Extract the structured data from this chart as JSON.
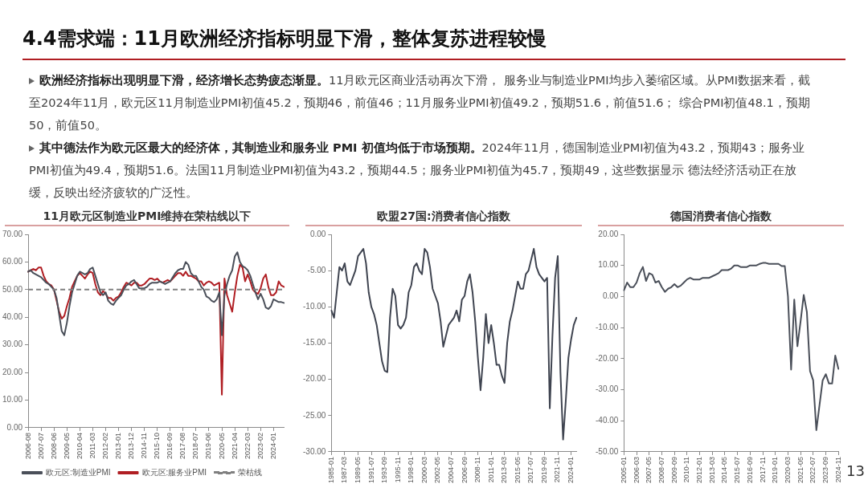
{
  "chart_data": [
    {
      "type": "other",
      "title": "4.4需求端：11月欧洲经济指标明显下滑，整体复苏进程较慢",
      "annotations": [
        "欧洲经济指标出现明显下滑，经济增长态势疲态渐显。",
        "11月欧元区商业活动再次下滑， 服务业与制造业PMI均步入萎缩区域。从PMI数据来看，截至2024年11月，欧元区11月制造业PMI初值45.2，预期46，前值46；11月服务业PMI初值49.2，预期51.6，前值51.6； 综合PMI初值48.1，预期50，前值50。",
        "其中德法作为欧元区最大的经济体，其制造业和服务业 PMI 初值均低于市场预期。",
        "2024年11月，德国制造业PMI初值为43.2，预期43；服务业PMI初值为49.4，预期51.6。法国11月制造业PMI初值为43.2，预期44.5；服务业PMI初值为45.7，预期49，这些数据显示 德法经济活动正在放缓，反映出经济疲软的广泛性。",
        "13"
      ]
    },
    {
      "type": "line",
      "title": "11月欧元区制造业PMI维持在荣枯线以下",
      "legend": "bottom",
      "categories": [
        "2006-08",
        null,
        null,
        null,
        null,
        "2007-07",
        null,
        null,
        null,
        null,
        "2008-06",
        null,
        null,
        null,
        null,
        "2009-05",
        null,
        null,
        null,
        null,
        "2010-04",
        null,
        null,
        null,
        null,
        "2011-03",
        null,
        null,
        null,
        null,
        "2012-02",
        null,
        null,
        null,
        null,
        "2013-01",
        null,
        null,
        null,
        null,
        "2013-12",
        null,
        null,
        null,
        null,
        "2014-11",
        null,
        null,
        null,
        null,
        "2015-10",
        null,
        null,
        null,
        null,
        "2016-09",
        null,
        null,
        null,
        null,
        "2017-08",
        null,
        null,
        null,
        null,
        "2018-07",
        null,
        null,
        null,
        null,
        "2019-06",
        null,
        null,
        null,
        null,
        "2020-05",
        null,
        null,
        null,
        null,
        "2021-04",
        null,
        null,
        null,
        null,
        "2022-03",
        null,
        null,
        null,
        null,
        "2023-02",
        null,
        null,
        null,
        null,
        "2024-01",
        null,
        null,
        null,
        null
      ],
      "series": [
        {
          "name": "欧元区:制造业PMI",
          "color": "#4a4f59",
          "values": [
            56.5,
            57,
            56,
            55.5,
            55,
            54.5,
            53.5,
            52.5,
            52,
            51,
            50,
            47,
            41,
            35,
            33.5,
            38,
            44,
            49,
            52,
            55,
            56.5,
            56,
            55.5,
            56,
            57.5,
            58,
            55,
            52,
            49,
            48,
            49,
            46,
            45,
            44.5,
            46,
            47,
            48,
            50,
            51.5,
            52,
            53,
            53.5,
            52,
            50.5,
            50.5,
            50.5,
            51,
            52,
            52.5,
            52.5,
            52.5,
            53,
            52.5,
            52,
            52.5,
            53,
            54.5,
            56,
            57,
            57.5,
            57.5,
            60,
            59,
            56,
            55,
            55,
            53,
            51,
            50,
            47.5,
            47,
            46,
            45.5,
            46.5,
            49,
            33.5,
            48,
            52,
            55,
            57,
            62,
            63.5,
            60,
            58.5,
            58,
            57,
            55,
            52,
            49,
            46.5,
            48.5,
            46.5,
            43.5,
            43,
            44,
            46.5,
            46,
            45.5,
            45.5,
            45.2
          ]
        },
        {
          "name": "欧元区:服务业PMI",
          "color": "#b01e23",
          "values": [
            56.5,
            57,
            57.5,
            57,
            58,
            58,
            55,
            53,
            52,
            51.5,
            50,
            46,
            42,
            39.5,
            40.5,
            44,
            47,
            51,
            53,
            55,
            56,
            55,
            54,
            55.5,
            56.5,
            56,
            52,
            49,
            48,
            49.5,
            48.5,
            47,
            47,
            46,
            47,
            47.5,
            49,
            51,
            52.5,
            52,
            51.5,
            52.5,
            52.5,
            51.5,
            51.5,
            52,
            53,
            54,
            54,
            53.5,
            54,
            53,
            52.5,
            53,
            53.5,
            53,
            54,
            55,
            56,
            56,
            55,
            56.5,
            55,
            55,
            54.5,
            54,
            53,
            53,
            51.5,
            52.5,
            53,
            52.5,
            51.5,
            52,
            52.5,
            12,
            54,
            48,
            45,
            42,
            49,
            55,
            59,
            58,
            53,
            55.5,
            53,
            50,
            49,
            48.5,
            50.5,
            54,
            55.5,
            51,
            48,
            48,
            49,
            53,
            51.5,
            51
          ]
        }
      ],
      "ref_lines": [
        {
          "axis": "y",
          "value": 50,
          "label": "荣枯线",
          "color": "#808080",
          "line_style": "dashed"
        }
      ],
      "ylim": [
        0,
        70
      ],
      "yticks": [
        {
          "value": 0,
          "label": "0.00"
        },
        {
          "value": 10,
          "label": "10.00"
        },
        {
          "value": 20,
          "label": "20.00"
        },
        {
          "value": 30,
          "label": "30.00"
        },
        {
          "value": 40,
          "label": "40.00"
        },
        {
          "value": 50,
          "label": "50.00"
        },
        {
          "value": 60,
          "label": "60.00"
        },
        {
          "value": 70,
          "label": "70.00"
        }
      ]
    },
    {
      "type": "line",
      "title": "欧盟27国:消费者信心指数",
      "categories": [
        "1985-01",
        null,
        null,
        null,
        null,
        "1987-03",
        null,
        null,
        null,
        null,
        "1989-05",
        null,
        null,
        null,
        null,
        "1991-07",
        null,
        null,
        null,
        null,
        "1993-09",
        null,
        null,
        null,
        null,
        "1995-11",
        null,
        null,
        null,
        null,
        "1998-01",
        null,
        null,
        null,
        null,
        "2000-03",
        null,
        null,
        null,
        null,
        "2002-05",
        null,
        null,
        null,
        null,
        "2004-07",
        null,
        null,
        null,
        null,
        "2006-09",
        null,
        null,
        null,
        null,
        "2008-11",
        null,
        null,
        null,
        null,
        "2011-01",
        null,
        null,
        null,
        null,
        "2013-03",
        null,
        null,
        null,
        null,
        "2015-05",
        null,
        null,
        null,
        null,
        "2017-07",
        null,
        null,
        null,
        null,
        "2019-09",
        null,
        null,
        null,
        null,
        "2021-11",
        null,
        null,
        null,
        null,
        "2024-01",
        null,
        null
      ],
      "series": [
        {
          "color": "#3f4450",
          "values": [
            -10.5,
            -11.5,
            -8,
            -4.5,
            -5,
            -4,
            -6.5,
            -7,
            -6,
            -5,
            -3,
            -2.5,
            -2,
            -4,
            -8,
            -10,
            -11,
            -12.5,
            -15,
            -17.5,
            -18.8,
            -19,
            -11.5,
            -7.5,
            -8.5,
            -12.5,
            -13,
            -12.5,
            -11.5,
            -8,
            -7,
            -4.5,
            -4,
            -5,
            -5.5,
            -2,
            -2.5,
            -4.5,
            -7.5,
            -8.5,
            -9.5,
            -12,
            -15.5,
            -14,
            -12.5,
            -12,
            -11.5,
            -10.5,
            -12,
            -9,
            -8.5,
            -6.5,
            -5.5,
            -8,
            -12,
            -17,
            -21.5,
            -17,
            -11,
            -15,
            -12.5,
            -15,
            -18,
            -18,
            -19.5,
            -20.5,
            -15,
            -12,
            -10.5,
            -8.5,
            -6.5,
            -7.5,
            -7.5,
            -5.5,
            -5,
            -3.5,
            -2,
            -4.5,
            -5.5,
            -6,
            -6.5,
            -6,
            -24,
            -14,
            -6,
            -3,
            -19,
            -28.3,
            -23,
            -17,
            -14.5,
            -12.5,
            -11.5
          ]
        }
      ],
      "ylim": [
        -30,
        0
      ],
      "yticks": [
        {
          "value": 0,
          "label": "0.00"
        },
        {
          "value": -5,
          "label": "-5.00"
        },
        {
          "value": -10,
          "label": "-10.00"
        },
        {
          "value": -15,
          "label": "-15.00"
        },
        {
          "value": -20,
          "label": "-20.00"
        },
        {
          "value": -25,
          "label": "-25.00"
        },
        {
          "value": -30,
          "label": "-30.00"
        }
      ]
    },
    {
      "type": "line",
      "title": "德国消费者信心指数",
      "categories": [
        "2005-01",
        null,
        null,
        null,
        "2006-03",
        null,
        null,
        null,
        "2007-05",
        null,
        null,
        null,
        "2008-07",
        null,
        null,
        null,
        "2009-09",
        null,
        null,
        null,
        "2010-11",
        null,
        null,
        null,
        "2012-01",
        null,
        null,
        null,
        "2013-03",
        null,
        null,
        null,
        "2014-05",
        null,
        null,
        null,
        "2015-07",
        null,
        null,
        null,
        "2016-09",
        null,
        null,
        null,
        "2017-11",
        null,
        null,
        null,
        "2019-01",
        null,
        null,
        null,
        "2020-03",
        null,
        null,
        null,
        "2021-05",
        null,
        null,
        null,
        "2022-07",
        null,
        null,
        null,
        "2023-09",
        null,
        null,
        null,
        "2024-11"
      ],
      "series": [
        {
          "color": "#4a4f59",
          "values": [
            2,
            4.5,
            3,
            3,
            4.5,
            7.5,
            9.5,
            5,
            7.5,
            7,
            4.5,
            5,
            3,
            1.5,
            2.5,
            3,
            4,
            3,
            3.5,
            4.5,
            5.5,
            6,
            5.5,
            5.5,
            5.5,
            6,
            6,
            6,
            6.5,
            7,
            7.5,
            8.5,
            8.5,
            8.5,
            9,
            10,
            10,
            9.5,
            9.5,
            9.5,
            10,
            10,
            10,
            10.5,
            10.8,
            10.8,
            10.5,
            10.5,
            10.5,
            10.5,
            9.8,
            9.8,
            0,
            -23.5,
            -1,
            -16,
            -8,
            0.5,
            -5,
            -24,
            -27,
            -43,
            -35,
            -27,
            -25,
            -28,
            -28,
            -19,
            -23.3
          ]
        }
      ],
      "ylim": [
        -50,
        20
      ],
      "yticks": [
        {
          "value": 20,
          "label": "20.00"
        },
        {
          "value": 10,
          "label": "10.00"
        },
        {
          "value": 0,
          "label": "0.00"
        },
        {
          "value": -10,
          "label": "-10.00"
        },
        {
          "value": -20,
          "label": "-20.00"
        },
        {
          "value": -30,
          "label": "-30.00"
        },
        {
          "value": -40,
          "label": "-40.00"
        },
        {
          "value": -50,
          "label": "-50.00"
        }
      ]
    }
  ]
}
